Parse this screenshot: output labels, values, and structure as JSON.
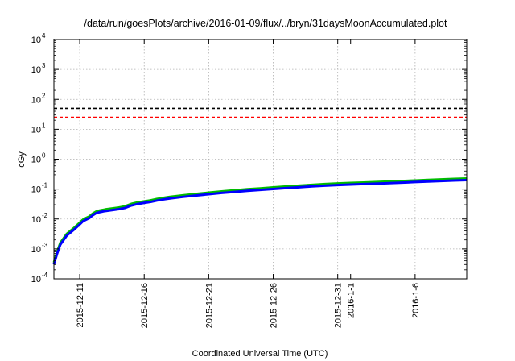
{
  "chart_data": {
    "type": "line",
    "title": "/data/run/goesPlots/archive/2016-01-09/flux/../bryn/31daysMoonAccumulated.plot",
    "xlabel": "Coordinated Universal Time (UTC)",
    "ylabel": "cGy",
    "y_scale": "log",
    "ylim": [
      0.0001,
      10000
    ],
    "xlim": [
      "2015-12-09",
      "2016-01-10"
    ],
    "grid": true,
    "y_ticks": [
      {
        "value": 0.0001,
        "base": "10",
        "exp": "-4"
      },
      {
        "value": 0.001,
        "base": "10",
        "exp": "-3"
      },
      {
        "value": 0.01,
        "base": "10",
        "exp": "-2"
      },
      {
        "value": 0.1,
        "base": "10",
        "exp": "-1"
      },
      {
        "value": 1,
        "base": "10",
        "exp": "0"
      },
      {
        "value": 10,
        "base": "10",
        "exp": "1"
      },
      {
        "value": 100,
        "base": "10",
        "exp": "2"
      },
      {
        "value": 1000,
        "base": "10",
        "exp": "3"
      },
      {
        "value": 10000,
        "base": "10",
        "exp": "4"
      }
    ],
    "x_ticks": [
      {
        "date": "2015-12-11",
        "label": "2015-12-11"
      },
      {
        "date": "2015-12-16",
        "label": "2015-12-16"
      },
      {
        "date": "2015-12-21",
        "label": "2015-12-21"
      },
      {
        "date": "2015-12-26",
        "label": "2015-12-26"
      },
      {
        "date": "2015-12-31",
        "label": "2015-12-31"
      },
      {
        "date": "2016-01-01",
        "label": "2016-1-1"
      },
      {
        "date": "2016-01-06",
        "label": "2016-1-6"
      }
    ],
    "x_grid_dates": [
      "2015-12-11",
      "2015-12-16",
      "2015-12-21",
      "2015-12-26",
      "2015-12-31",
      "2016-01-06"
    ],
    "reference_lines": [
      {
        "y": 50,
        "color": "#000000",
        "style": "dashed"
      },
      {
        "y": 25,
        "color": "#ff0000",
        "style": "dashed"
      }
    ],
    "series": [
      {
        "color": "#00bb00",
        "x": [
          "2015-12-09 00:00",
          "2015-12-09 06:00",
          "2015-12-09 12:00",
          "2015-12-10 00:00",
          "2015-12-10 12:00",
          "2015-12-11 00:00",
          "2015-12-11 06:00",
          "2015-12-11 12:00",
          "2015-12-11 18:00",
          "2015-12-12 00:00",
          "2015-12-12 06:00",
          "2015-12-12 12:00",
          "2015-12-13 00:00",
          "2015-12-14 00:00",
          "2015-12-14 12:00",
          "2015-12-15 00:00",
          "2015-12-15 12:00",
          "2015-12-16 00:00",
          "2015-12-16 12:00",
          "2015-12-17 00:00",
          "2015-12-17 12:00",
          "2015-12-18 00:00",
          "2015-12-19 00:00",
          "2015-12-20 00:00",
          "2015-12-21 00:00",
          "2015-12-22 00:00",
          "2015-12-23 00:00",
          "2015-12-24 00:00",
          "2015-12-25 00:00",
          "2015-12-26 00:00",
          "2015-12-27 00:00",
          "2015-12-28 00:00",
          "2015-12-29 00:00",
          "2015-12-30 00:00",
          "2015-12-31 00:00",
          "2016-01-01 00:00",
          "2016-01-02 00:00",
          "2016-01-03 00:00",
          "2016-01-04 00:00",
          "2016-01-05 00:00",
          "2016-01-06 00:00",
          "2016-01-07 00:00",
          "2016-01-08 00:00",
          "2016-01-09 00:00",
          "2016-01-10 00:00"
        ],
        "values": [
          0.00035,
          0.0008,
          0.0016,
          0.0032,
          0.0048,
          0.0075,
          0.0095,
          0.0108,
          0.0122,
          0.015,
          0.0175,
          0.019,
          0.021,
          0.024,
          0.0265,
          0.032,
          0.036,
          0.039,
          0.042,
          0.047,
          0.051,
          0.055,
          0.062,
          0.069,
          0.076,
          0.084,
          0.091,
          0.099,
          0.106,
          0.114,
          0.122,
          0.13,
          0.139,
          0.147,
          0.154,
          0.16,
          0.166,
          0.172,
          0.179,
          0.186,
          0.194,
          0.202,
          0.21,
          0.218,
          0.226
        ]
      },
      {
        "color": "#0000ff",
        "x": [
          "2015-12-09 00:00",
          "2015-12-09 06:00",
          "2015-12-09 12:00",
          "2015-12-10 00:00",
          "2015-12-10 12:00",
          "2015-12-11 00:00",
          "2015-12-11 06:00",
          "2015-12-11 12:00",
          "2015-12-11 18:00",
          "2015-12-12 00:00",
          "2015-12-12 06:00",
          "2015-12-12 12:00",
          "2015-12-13 00:00",
          "2015-12-14 00:00",
          "2015-12-14 12:00",
          "2015-12-15 00:00",
          "2015-12-15 12:00",
          "2015-12-16 00:00",
          "2015-12-16 12:00",
          "2015-12-17 00:00",
          "2015-12-17 12:00",
          "2015-12-18 00:00",
          "2015-12-19 00:00",
          "2015-12-20 00:00",
          "2015-12-21 00:00",
          "2015-12-22 00:00",
          "2015-12-23 00:00",
          "2015-12-24 00:00",
          "2015-12-25 00:00",
          "2015-12-26 00:00",
          "2015-12-27 00:00",
          "2015-12-28 00:00",
          "2015-12-29 00:00",
          "2015-12-30 00:00",
          "2015-12-31 00:00",
          "2016-01-01 00:00",
          "2016-01-02 00:00",
          "2016-01-03 00:00",
          "2016-01-04 00:00",
          "2016-01-05 00:00",
          "2016-01-06 00:00",
          "2016-01-07 00:00",
          "2016-01-08 00:00",
          "2016-01-09 00:00",
          "2016-01-10 00:00"
        ],
        "values": [
          0.0003,
          0.0007,
          0.0014,
          0.0028,
          0.0042,
          0.0066,
          0.0084,
          0.0095,
          0.0108,
          0.0132,
          0.0155,
          0.0168,
          0.0185,
          0.0212,
          0.0234,
          0.0282,
          0.0318,
          0.0345,
          0.0372,
          0.0415,
          0.0452,
          0.0487,
          0.0548,
          0.061,
          0.0672,
          0.0743,
          0.0805,
          0.0876,
          0.0938,
          0.1009,
          0.108,
          0.115,
          0.123,
          0.13,
          0.1362,
          0.1416,
          0.1469,
          0.1522,
          0.1584,
          0.1646,
          0.1717,
          0.1788,
          0.1858,
          0.1929,
          0.2
        ]
      }
    ]
  }
}
